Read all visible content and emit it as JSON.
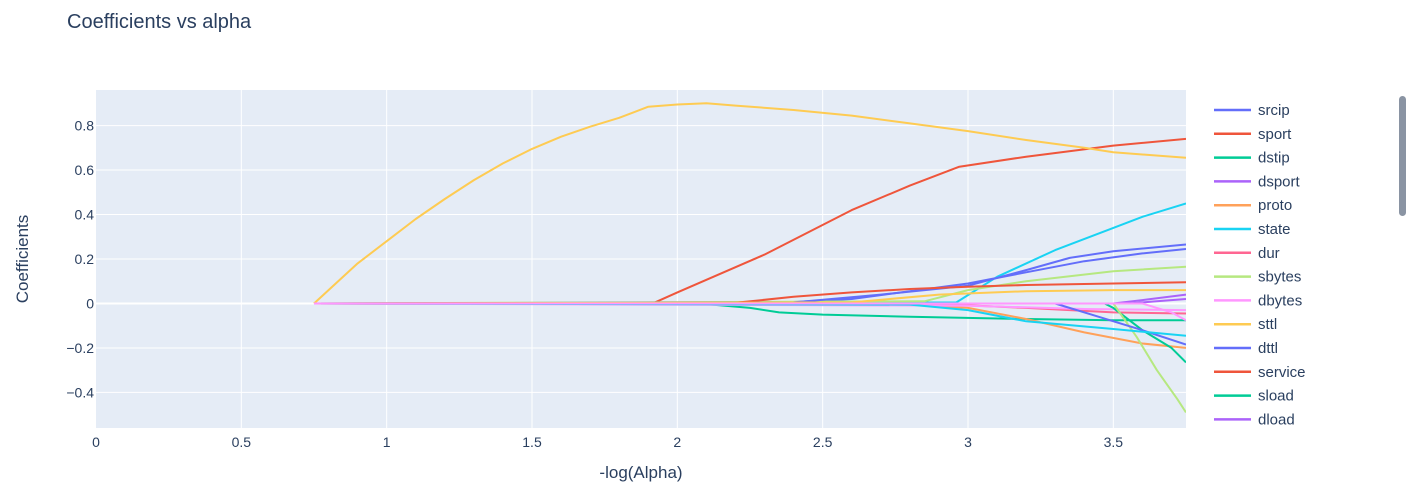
{
  "chart_data": {
    "type": "line",
    "title": "Coefficients vs alpha",
    "xlabel": "-log(Alpha)",
    "ylabel": "Coefficients",
    "xlim": [
      0,
      3.75
    ],
    "ylim": [
      -0.56,
      0.96
    ],
    "xticks": [
      0,
      0.5,
      1,
      1.5,
      2,
      2.5,
      3,
      3.5
    ],
    "xtick_labels": [
      "0",
      "0.5",
      "1",
      "1.5",
      "2",
      "2.5",
      "3",
      "3.5"
    ],
    "yticks": [
      -0.4,
      -0.2,
      0,
      0.2,
      0.4,
      0.6,
      0.8
    ],
    "ytick_labels": [
      "−0.4",
      "−0.2",
      "0",
      "0.2",
      "0.4",
      "0.6",
      "0.8"
    ],
    "grid": true,
    "legend_position": "right",
    "plot_background": "#e5ecf6",
    "series": [
      {
        "name": "srcip",
        "color": "#636efa",
        "points": [
          [
            0.75,
            0
          ],
          [
            1.5,
            0
          ],
          [
            2.3,
            0
          ],
          [
            2.6,
            0.02
          ],
          [
            3.0,
            0.09
          ],
          [
            3.2,
            0.14
          ],
          [
            3.4,
            0.19
          ],
          [
            3.6,
            0.225
          ],
          [
            3.75,
            0.245
          ]
        ]
      },
      {
        "name": "sport",
        "color": "#ef553b",
        "points": [
          [
            0.75,
            0
          ],
          [
            1.5,
            0
          ],
          [
            1.92,
            0.003
          ],
          [
            2.0,
            0.05
          ],
          [
            2.3,
            0.22
          ],
          [
            2.6,
            0.42
          ],
          [
            2.8,
            0.53
          ],
          [
            2.97,
            0.615
          ],
          [
            3.2,
            0.66
          ],
          [
            3.5,
            0.71
          ],
          [
            3.75,
            0.74
          ]
        ]
      },
      {
        "name": "dstip",
        "color": "#00cc96",
        "points": [
          [
            0.75,
            0
          ],
          [
            2.1,
            -0.003
          ],
          [
            2.25,
            -0.02
          ],
          [
            2.35,
            -0.04
          ],
          [
            2.5,
            -0.05
          ],
          [
            2.8,
            -0.06
          ],
          [
            3.2,
            -0.07
          ],
          [
            3.5,
            -0.075
          ],
          [
            3.75,
            -0.075
          ]
        ]
      },
      {
        "name": "dsport",
        "color": "#ab63fa",
        "points": [
          [
            0.75,
            0
          ],
          [
            3.5,
            0
          ],
          [
            3.6,
            0.015
          ],
          [
            3.75,
            0.04
          ]
        ]
      },
      {
        "name": "proto",
        "color": "#ffa15a",
        "points": [
          [
            0.75,
            0
          ],
          [
            2.8,
            -0.005
          ],
          [
            3.0,
            -0.02
          ],
          [
            3.2,
            -0.07
          ],
          [
            3.4,
            -0.13
          ],
          [
            3.6,
            -0.18
          ],
          [
            3.75,
            -0.2
          ]
        ]
      },
      {
        "name": "state",
        "color": "#19d3f3",
        "points": [
          [
            0.75,
            0
          ],
          [
            2.96,
            0.005
          ],
          [
            3.1,
            0.12
          ],
          [
            3.3,
            0.24
          ],
          [
            3.5,
            0.34
          ],
          [
            3.6,
            0.39
          ],
          [
            3.75,
            0.45
          ]
        ]
      },
      {
        "name": "dur",
        "color": "#ff6692",
        "points": [
          [
            0.75,
            0
          ],
          [
            2.9,
            -0.003
          ],
          [
            3.2,
            -0.02
          ],
          [
            3.5,
            -0.04
          ],
          [
            3.75,
            -0.045
          ]
        ]
      },
      {
        "name": "sbytes",
        "color": "#b6e880",
        "points": [
          [
            0.75,
            0
          ],
          [
            2.85,
            0.01
          ],
          [
            3.0,
            0.06
          ],
          [
            3.2,
            0.1
          ],
          [
            3.5,
            0.145
          ],
          [
            3.75,
            0.165
          ]
        ]
      },
      {
        "name": "dbytes",
        "color": "#ff97ff",
        "points": [
          [
            0.75,
            0
          ],
          [
            3.0,
            -0.01
          ],
          [
            3.4,
            -0.025
          ],
          [
            3.75,
            -0.03
          ]
        ]
      },
      {
        "name": "sttl",
        "color": "#fecb52",
        "points": [
          [
            0.75,
            0
          ],
          [
            0.9,
            0.18
          ],
          [
            1.0,
            0.28
          ],
          [
            1.1,
            0.38
          ],
          [
            1.2,
            0.47
          ],
          [
            1.3,
            0.555
          ],
          [
            1.4,
            0.63
          ],
          [
            1.5,
            0.695
          ],
          [
            1.6,
            0.75
          ],
          [
            1.7,
            0.795
          ],
          [
            1.8,
            0.835
          ],
          [
            1.9,
            0.885
          ],
          [
            2.0,
            0.895
          ],
          [
            2.1,
            0.9
          ],
          [
            2.2,
            0.89
          ],
          [
            2.4,
            0.87
          ],
          [
            2.6,
            0.845
          ],
          [
            2.8,
            0.81
          ],
          [
            3.0,
            0.775
          ],
          [
            3.2,
            0.735
          ],
          [
            3.4,
            0.7
          ],
          [
            3.5,
            0.68
          ],
          [
            3.75,
            0.655
          ]
        ]
      },
      {
        "name": "dttl",
        "color": "#636efa",
        "points": [
          [
            0.75,
            0
          ],
          [
            2.4,
            0.005
          ],
          [
            2.7,
            0.04
          ],
          [
            3.0,
            0.08
          ],
          [
            3.2,
            0.15
          ],
          [
            3.35,
            0.205
          ],
          [
            3.5,
            0.235
          ],
          [
            3.75,
            0.265
          ]
        ]
      },
      {
        "name": "service",
        "color": "#ef553b",
        "points": [
          [
            0.75,
            0
          ],
          [
            2.2,
            0.003
          ],
          [
            2.4,
            0.03
          ],
          [
            2.6,
            0.05
          ],
          [
            2.8,
            0.065
          ],
          [
            3.0,
            0.075
          ],
          [
            3.2,
            0.083
          ],
          [
            3.5,
            0.09
          ],
          [
            3.75,
            0.095
          ]
        ]
      },
      {
        "name": "sload",
        "color": "#00cc96",
        "points": [
          [
            0.75,
            0
          ],
          [
            3.47,
            0
          ],
          [
            3.5,
            -0.02
          ],
          [
            3.6,
            -0.12
          ],
          [
            3.7,
            -0.2
          ],
          [
            3.75,
            -0.265
          ]
        ]
      },
      {
        "name": "dload",
        "color": "#ab63fa",
        "points": [
          [
            0.75,
            0
          ],
          [
            3.55,
            0
          ],
          [
            3.65,
            0.01
          ],
          [
            3.75,
            0.02
          ]
        ]
      },
      {
        "name": "",
        "color": "#b6e880",
        "points": [
          [
            0.75,
            0
          ],
          [
            3.5,
            0
          ],
          [
            3.58,
            -0.15
          ],
          [
            3.65,
            -0.3
          ],
          [
            3.72,
            -0.43
          ],
          [
            3.75,
            -0.49
          ]
        ]
      },
      {
        "name": "",
        "color": "#636efa",
        "points": [
          [
            0.75,
            0
          ],
          [
            3.3,
            0
          ],
          [
            3.45,
            -0.06
          ],
          [
            3.6,
            -0.12
          ],
          [
            3.75,
            -0.185
          ]
        ]
      },
      {
        "name": "",
        "color": "#19d3f3",
        "points": [
          [
            0.75,
            0
          ],
          [
            2.8,
            -0.005
          ],
          [
            3.0,
            -0.03
          ],
          [
            3.2,
            -0.08
          ],
          [
            3.5,
            -0.115
          ],
          [
            3.75,
            -0.145
          ]
        ]
      },
      {
        "name": "",
        "color": "#fecb52",
        "points": [
          [
            0.75,
            0
          ],
          [
            2.6,
            0.005
          ],
          [
            2.9,
            0.04
          ],
          [
            3.2,
            0.055
          ],
          [
            3.5,
            0.06
          ],
          [
            3.75,
            0.06
          ]
        ]
      },
      {
        "name": "",
        "color": "#ff97ff",
        "points": [
          [
            0.75,
            0
          ],
          [
            3.6,
            0
          ],
          [
            3.7,
            -0.04
          ],
          [
            3.75,
            -0.075
          ]
        ]
      }
    ]
  }
}
